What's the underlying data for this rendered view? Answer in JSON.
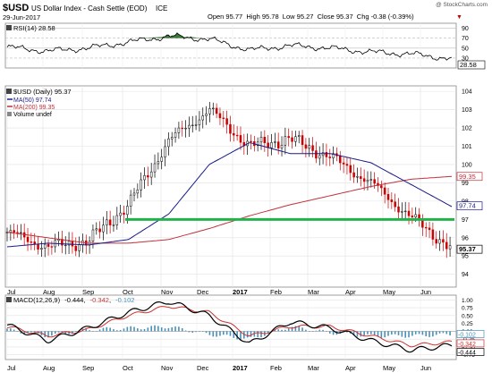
{
  "header": {
    "symbol": "$USD",
    "name": "US Dollar Index - Cash Settle (EOD)",
    "exchange": "ICE",
    "date": "29-Jun-2017",
    "quote": "Open 95.77  High 95.78  Low 95.27  Close 95.37  Chg -0.38 (-0.39%)",
    "chg_arrow": "▼",
    "watermark": "@ StockCharts.com"
  },
  "rsi_panel": {
    "legend": "RSI(14) 28.58",
    "current_label": "28.58",
    "ticks": [
      30,
      50,
      70,
      90
    ],
    "ylim": [
      10,
      100
    ],
    "color_line": "#000000",
    "color_overbought_fill": "#3a7a3a"
  },
  "price_panel": {
    "legend_title": "$USD (Daily) 95.37",
    "legend_ma50": "MA(50) 97.74",
    "legend_ma200": "MA(200) 99.35",
    "legend_volume": "Volume undef",
    "ticks": [
      94,
      95,
      96,
      97,
      98,
      99,
      100,
      101,
      102,
      103,
      104
    ],
    "ylim": [
      93.3,
      104.3
    ],
    "labels": {
      "close": "95.37",
      "ma50": "97.74",
      "ma200": "99.35"
    },
    "colors": {
      "up": "#000000",
      "down": "#cc0000",
      "ma50": "#1a1a8c",
      "ma200": "#c0303a",
      "support": "#22b24c"
    },
    "support_level": 97.0
  },
  "macd_panel": {
    "legend_prefix": "MACD(12,26,9)",
    "legend_macd": "-0.444",
    "legend_signal": "-0.342",
    "legend_hist": "-0.102",
    "labels": {
      "hist": "-0.102",
      "signal": "-0.342",
      "macd": "-0.444"
    },
    "ticks": [
      1.0,
      0.75,
      0.5,
      0.25,
      0.0,
      -0.25,
      -0.5,
      -0.75
    ],
    "tick_labels": [
      "1.00",
      "0.75",
      "0.50",
      "0.25",
      "0.00",
      "-0.25",
      "-0.50",
      "-0.75"
    ],
    "ylim": [
      -0.9,
      1.15
    ],
    "colors": {
      "macd": "#000000",
      "signal": "#cc3333",
      "hist": "#4a90b8"
    }
  },
  "x_axis": {
    "months": [
      "Jul",
      "Aug",
      "Sep",
      "Oct",
      "Nov",
      "Dec",
      "2017",
      "Feb",
      "Mar",
      "Apr",
      "May",
      "Jun"
    ]
  },
  "chart_data": {
    "type": "line",
    "title": "$USD US Dollar Index - Cash Settle (EOD) ICE",
    "x": [
      "2016-07",
      "2016-08",
      "2016-09",
      "2016-10",
      "2016-11",
      "2016-12",
      "2017-01",
      "2017-02",
      "2017-03",
      "2017-04",
      "2017-05",
      "2017-06"
    ],
    "series": [
      {
        "name": "$USD (Daily)",
        "values": [
          96.3,
          95.5,
          95.8,
          97.8,
          101.3,
          103.0,
          101.0,
          101.4,
          100.4,
          99.0,
          97.1,
          95.4
        ]
      },
      {
        "name": "MA(50)",
        "values": [
          95.5,
          95.7,
          95.6,
          95.9,
          97.3,
          100.0,
          101.2,
          100.6,
          100.6,
          100.1,
          98.9,
          97.7
        ]
      },
      {
        "name": "MA(200)",
        "values": [
          96.3,
          96.0,
          95.7,
          95.7,
          95.9,
          96.5,
          97.2,
          97.8,
          98.3,
          98.8,
          99.2,
          99.35
        ]
      },
      {
        "name": "RSI(14)",
        "values": [
          52,
          44,
          50,
          62,
          74,
          68,
          46,
          55,
          50,
          42,
          38,
          28.58
        ]
      },
      {
        "name": "MACD",
        "values": [
          0.2,
          -0.3,
          0.1,
          0.6,
          0.95,
          0.5,
          -0.4,
          0.3,
          0.1,
          -0.3,
          -0.6,
          -0.444
        ]
      },
      {
        "name": "Signal",
        "values": [
          0.15,
          -0.15,
          0.05,
          0.5,
          0.8,
          0.6,
          -0.15,
          0.15,
          0.15,
          -0.15,
          -0.45,
          -0.342
        ]
      }
    ],
    "annotations": [
      "Horizontal support line at 97.0"
    ],
    "grid": true,
    "ylim": [
      93.3,
      104.3
    ]
  }
}
